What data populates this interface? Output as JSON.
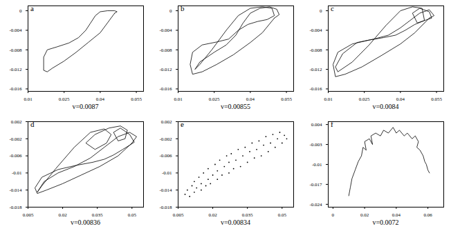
{
  "chart_data": [
    {
      "type": "line",
      "title": "a",
      "xlabel": "v=0.0087",
      "color": "#000000",
      "xlim": [
        0.01,
        0.058
      ],
      "ylim": [
        -0.0165,
        0.001
      ],
      "xticks": [
        0.01,
        0.025,
        0.04,
        0.055
      ],
      "yticks": [
        0,
        -0.004,
        -0.008,
        -0.012,
        -0.016
      ],
      "x": [
        0.046,
        0.04,
        0.035,
        0.03,
        0.025,
        0.02,
        0.018,
        0.0165,
        0.0165,
        0.018,
        0.022,
        0.027,
        0.031,
        0.034,
        0.036,
        0.038,
        0.04,
        0.043,
        0.046,
        0.047,
        0.046
      ],
      "values": [
        -0.0005,
        -0.0045,
        -0.0065,
        -0.0085,
        -0.0103,
        -0.0118,
        -0.0125,
        -0.0122,
        -0.0095,
        -0.008,
        -0.0074,
        -0.0066,
        -0.0055,
        -0.004,
        -0.0025,
        -0.001,
        -0.0002,
        0.0,
        0.0,
        -0.0002,
        -0.0005
      ]
    },
    {
      "type": "line",
      "title": "b",
      "xlabel": "v=0.00855",
      "color": "#000000",
      "xlim": [
        0.01,
        0.058
      ],
      "ylim": [
        -0.0165,
        0.001
      ],
      "xticks": [
        0.01,
        0.025,
        0.04,
        0.055
      ],
      "yticks": [
        0,
        -0.004,
        -0.008,
        -0.012,
        -0.016
      ],
      "x": [
        0.05,
        0.045,
        0.04,
        0.033,
        0.026,
        0.02,
        0.016,
        0.015,
        0.016,
        0.02,
        0.026,
        0.031,
        0.035,
        0.039,
        0.043,
        0.047,
        0.05,
        0.049,
        0.045,
        0.04,
        0.035,
        0.03,
        0.024,
        0.019,
        0.017,
        0.019,
        0.025,
        0.03,
        0.034,
        0.037,
        0.04,
        0.044,
        0.048,
        0.051,
        0.052,
        0.05
      ],
      "values": [
        -0.0015,
        -0.0045,
        -0.0065,
        -0.009,
        -0.011,
        -0.0125,
        -0.013,
        -0.011,
        -0.0085,
        -0.007,
        -0.0064,
        -0.0058,
        -0.004,
        -0.0028,
        -0.0022,
        -0.0018,
        -0.001,
        0.0005,
        0.0008,
        0.0005,
        -0.001,
        -0.004,
        -0.008,
        -0.011,
        -0.012,
        -0.0105,
        -0.0085,
        -0.007,
        -0.005,
        -0.0025,
        -0.0005,
        0.0005,
        0.0008,
        0.0003,
        -0.0008,
        -0.0015
      ]
    },
    {
      "type": "line",
      "title": "c",
      "xlabel": "v=0.0084",
      "color": "#000000",
      "xlim": [
        0.01,
        0.058
      ],
      "ylim": [
        -0.0165,
        0.001
      ],
      "xticks": [
        0.01,
        0.025,
        0.04,
        0.055
      ],
      "yticks": [
        0,
        -0.004,
        -0.008,
        -0.012,
        -0.016
      ],
      "x": [
        0.052,
        0.046,
        0.04,
        0.032,
        0.024,
        0.017,
        0.013,
        0.012,
        0.014,
        0.02,
        0.027,
        0.033,
        0.038,
        0.042,
        0.046,
        0.05,
        0.053,
        0.052,
        0.048,
        0.045,
        0.047,
        0.05,
        0.049,
        0.045,
        0.04,
        0.034,
        0.027,
        0.02,
        0.014,
        0.013,
        0.016,
        0.022,
        0.029,
        0.035,
        0.04,
        0.044,
        0.048,
        0.052,
        0.054,
        0.052
      ],
      "values": [
        -0.0015,
        -0.0045,
        -0.0068,
        -0.0092,
        -0.0115,
        -0.013,
        -0.0135,
        -0.011,
        -0.0085,
        -0.0068,
        -0.006,
        -0.0055,
        -0.005,
        -0.004,
        -0.0028,
        -0.002,
        -0.0015,
        -0.0002,
        0.0005,
        -0.0005,
        -0.0025,
        -0.002,
        0.0005,
        0.0008,
        0.0,
        -0.003,
        -0.007,
        -0.0105,
        -0.0125,
        -0.0115,
        -0.0088,
        -0.0065,
        -0.0058,
        -0.005,
        -0.0035,
        -0.002,
        -0.0005,
        0.0002,
        -0.001,
        -0.0015
      ]
    },
    {
      "type": "line",
      "title": "d",
      "xlabel": "v=0.00836",
      "color": "#000000",
      "xlim": [
        0.005,
        0.055
      ],
      "ylim": [
        -0.018,
        0.002
      ],
      "xticks": [
        0.005,
        0.02,
        0.035,
        0.05
      ],
      "yticks": [
        0.002,
        -0.002,
        -0.006,
        -0.01,
        -0.014,
        -0.018
      ],
      "x": [
        0.05,
        0.044,
        0.036,
        0.028,
        0.02,
        0.013,
        0.009,
        0.008,
        0.011,
        0.018,
        0.026,
        0.033,
        0.038,
        0.042,
        0.046,
        0.049,
        0.051,
        0.049,
        0.045,
        0.042,
        0.044,
        0.047,
        0.048,
        0.045,
        0.04,
        0.034,
        0.03,
        0.034,
        0.039,
        0.041,
        0.038,
        0.032,
        0.025,
        0.017,
        0.011,
        0.009,
        0.012,
        0.018,
        0.025,
        0.032,
        0.038,
        0.044,
        0.049,
        0.052,
        0.05
      ],
      "values": [
        -0.003,
        -0.006,
        -0.0085,
        -0.0105,
        -0.0125,
        -0.014,
        -0.0148,
        -0.0135,
        -0.011,
        -0.0092,
        -0.0082,
        -0.0075,
        -0.0068,
        -0.0058,
        -0.0045,
        -0.0035,
        -0.0028,
        -0.001,
        0.0005,
        -0.0005,
        -0.0025,
        -0.002,
        0.0,
        0.001,
        0.0005,
        -0.001,
        -0.003,
        -0.0045,
        -0.003,
        -0.001,
        0.0003,
        -0.0005,
        -0.004,
        -0.009,
        -0.013,
        -0.0145,
        -0.012,
        -0.01,
        -0.0085,
        -0.0065,
        -0.004,
        -0.0015,
        -0.0005,
        -0.0015,
        -0.003
      ]
    },
    {
      "type": "scatter",
      "title": "e",
      "xlabel": "v=0.00834",
      "color": "#000000",
      "xlim": [
        0.005,
        0.055
      ],
      "ylim": [
        -0.018,
        0.002
      ],
      "xticks": [
        0.005,
        0.02,
        0.035,
        0.05
      ],
      "yticks": [
        0.002,
        -0.002,
        -0.006,
        -0.01,
        -0.014,
        -0.018
      ],
      "x": [
        0.008,
        0.009,
        0.01,
        0.011,
        0.012,
        0.012,
        0.013,
        0.014,
        0.015,
        0.015,
        0.016,
        0.017,
        0.018,
        0.018,
        0.019,
        0.02,
        0.021,
        0.022,
        0.022,
        0.023,
        0.024,
        0.025,
        0.026,
        0.027,
        0.027,
        0.028,
        0.029,
        0.03,
        0.031,
        0.032,
        0.033,
        0.034,
        0.035,
        0.036,
        0.037,
        0.038,
        0.039,
        0.04,
        0.041,
        0.042,
        0.043,
        0.044,
        0.045,
        0.046,
        0.047,
        0.048,
        0.049,
        0.05,
        0.051,
        0.052
      ],
      "values": [
        -0.015,
        -0.014,
        -0.0155,
        -0.013,
        -0.0145,
        -0.012,
        -0.0135,
        -0.011,
        -0.014,
        -0.0125,
        -0.01,
        -0.013,
        -0.0115,
        -0.009,
        -0.0125,
        -0.0105,
        -0.008,
        -0.0115,
        -0.0095,
        -0.007,
        -0.0105,
        -0.0085,
        -0.006,
        -0.01,
        -0.0075,
        -0.0055,
        -0.009,
        -0.007,
        -0.0045,
        -0.0085,
        -0.006,
        -0.004,
        -0.0075,
        -0.005,
        -0.003,
        -0.0065,
        -0.0045,
        -0.0025,
        -0.006,
        -0.0035,
        -0.0015,
        -0.005,
        -0.003,
        -0.001,
        -0.004,
        -0.002,
        -0.0005,
        -0.003,
        -0.0012,
        -0.002
      ]
    },
    {
      "type": "line",
      "title": "f",
      "xlabel": "v=0.0072",
      "color": "#000000",
      "xlim": [
        -0.003,
        0.07
      ],
      "ylim": [
        -0.025,
        0.005
      ],
      "xticks": [
        0,
        0.02,
        0.04,
        0.06
      ],
      "yticks": [
        0.004,
        -0.003,
        -0.01,
        -0.017,
        -0.024
      ],
      "x": [
        0.01,
        0.011,
        0.012,
        0.014,
        0.016,
        0.018,
        0.019,
        0.021,
        0.02,
        0.023,
        0.025,
        0.024,
        0.027,
        0.03,
        0.032,
        0.035,
        0.038,
        0.04,
        0.042,
        0.045,
        0.047,
        0.05,
        0.052,
        0.054,
        0.053,
        0.055,
        0.057,
        0.058,
        0.059,
        0.06,
        0.061
      ],
      "values": [
        -0.021,
        -0.018,
        -0.015,
        -0.012,
        -0.009,
        -0.007,
        -0.004,
        -0.005,
        -0.002,
        -0.001,
        -0.003,
        0.0,
        0.001,
        0.0,
        0.002,
        0.001,
        0.003,
        0.001,
        0.002,
        0.0,
        0.001,
        -0.001,
        0.0,
        -0.002,
        -0.004,
        -0.005,
        -0.007,
        -0.009,
        -0.01,
        -0.012,
        -0.013
      ]
    }
  ]
}
